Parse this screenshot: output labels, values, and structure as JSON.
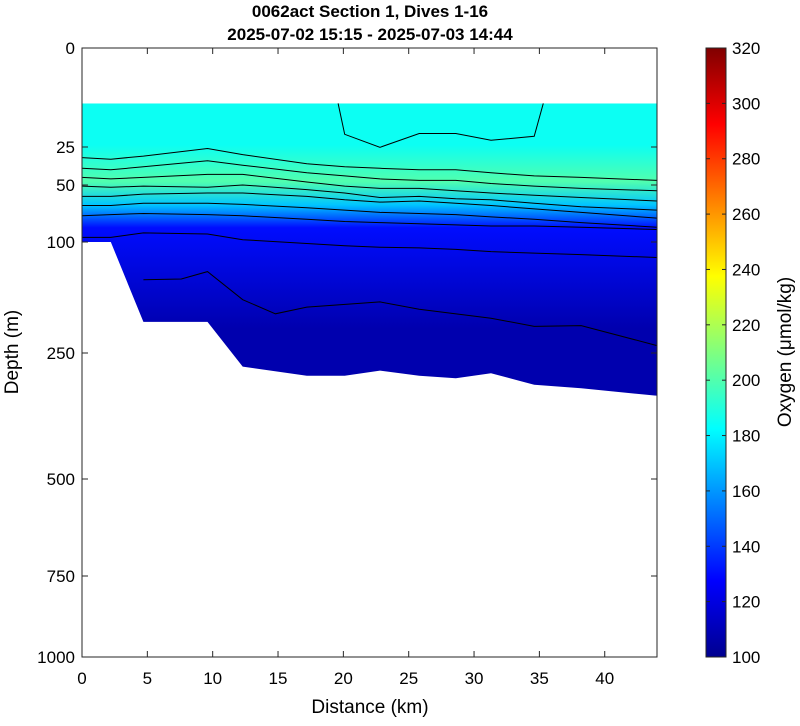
{
  "chart_data": {
    "type": "heatmap",
    "title": "0062act Section 1, Dives 1-16",
    "subtitle": "2025-07-02 15:15 - 2025-07-03 14:44",
    "xlabel": "Distance (km)",
    "ylabel": "Depth (m)",
    "colorbar_label": "Oxygen (μmol/kg)",
    "xlim": [
      0,
      44
    ],
    "ylim": [
      0,
      1000
    ],
    "y_scale": "nonlinear (expanded near surface)",
    "x_ticks": [
      "0",
      "5",
      "10",
      "15",
      "20",
      "25",
      "30",
      "35",
      "40"
    ],
    "y_ticks": [
      "0",
      "25",
      "50",
      "100",
      "250",
      "500",
      "750",
      "1000"
    ],
    "y_tick_values": [
      0,
      25,
      50,
      100,
      250,
      500,
      750,
      1000
    ],
    "colorbar_ticks": [
      "100",
      "120",
      "140",
      "160",
      "180",
      "200",
      "220",
      "240",
      "260",
      "280",
      "300",
      "320"
    ],
    "colorbar_range": [
      100,
      320
    ],
    "colormap": "jet",
    "profile_distances_km": [
      0,
      2.2,
      4.7,
      9.6,
      12.3,
      17.2,
      20.1,
      22.8,
      25.8,
      28.6,
      31.3,
      34.6,
      38.2,
      44
    ],
    "data_top_depth_m": 14,
    "data_bottom_depth_m": [
      100,
      100,
      208,
      208,
      277,
      295,
      295,
      285,
      295,
      300,
      290,
      313,
      320,
      335
    ],
    "layers": [
      {
        "top_m": 14,
        "bottom_m": 35,
        "oxygen_umol_kg": 185
      },
      {
        "top_m": 35,
        "bottom_m": 60,
        "oxygen_umol_kg": 200
      },
      {
        "top_m": 60,
        "bottom_m": 75,
        "oxygen_umol_kg": 170
      },
      {
        "top_m": 75,
        "bottom_m": 100,
        "oxygen_umol_kg": 130
      },
      {
        "top_m": 100,
        "bottom_m": 335,
        "oxygen_umol_kg": 110
      }
    ],
    "isolines_depth_m": [
      [
        32,
        33,
        31,
        26,
        30,
        36,
        38,
        39,
        40,
        40,
        42,
        44,
        45,
        47
      ],
      [
        39,
        40,
        38,
        34,
        37,
        42,
        44,
        46,
        47,
        47,
        49,
        51,
        53,
        55
      ],
      [
        45,
        46,
        45,
        43,
        43,
        48,
        51,
        53,
        53,
        55,
        57,
        59,
        61,
        64
      ],
      [
        51,
        52,
        51,
        52,
        50,
        54,
        57,
        61,
        60,
        62,
        63,
        66,
        69,
        72
      ],
      [
        60,
        60,
        58,
        57,
        57,
        60,
        63,
        65,
        64,
        66,
        68,
        71,
        74,
        79
      ],
      [
        68,
        68,
        66,
        66,
        67,
        70,
        72,
        74,
        75,
        76,
        78,
        80,
        83,
        87
      ],
      [
        77,
        76,
        75,
        76,
        77,
        80,
        82,
        83,
        84,
        85,
        86,
        86,
        87,
        89
      ],
      [
        96,
        96,
        92,
        93,
        98,
        102,
        105,
        107,
        108,
        110,
        113,
        115,
        117,
        121
      ]
    ],
    "deep_isoline": {
      "x": [
        4.7,
        7.6,
        9.6,
        12.3,
        14.8,
        17.2,
        22.8,
        25.8,
        31.3,
        34.6,
        38.2,
        44
      ],
      "depth_m": [
        151,
        150,
        140,
        178,
        197,
        188,
        181,
        191,
        203,
        214,
        213,
        240
      ]
    },
    "surface_isoline": {
      "x": [
        19.6,
        20.1,
        22.8,
        25.8,
        28.6,
        31.3,
        34.6,
        35.3
      ],
      "depth_m": [
        14,
        21.8,
        25.2,
        21.6,
        21.6,
        23.3,
        22.3,
        14
      ]
    }
  }
}
